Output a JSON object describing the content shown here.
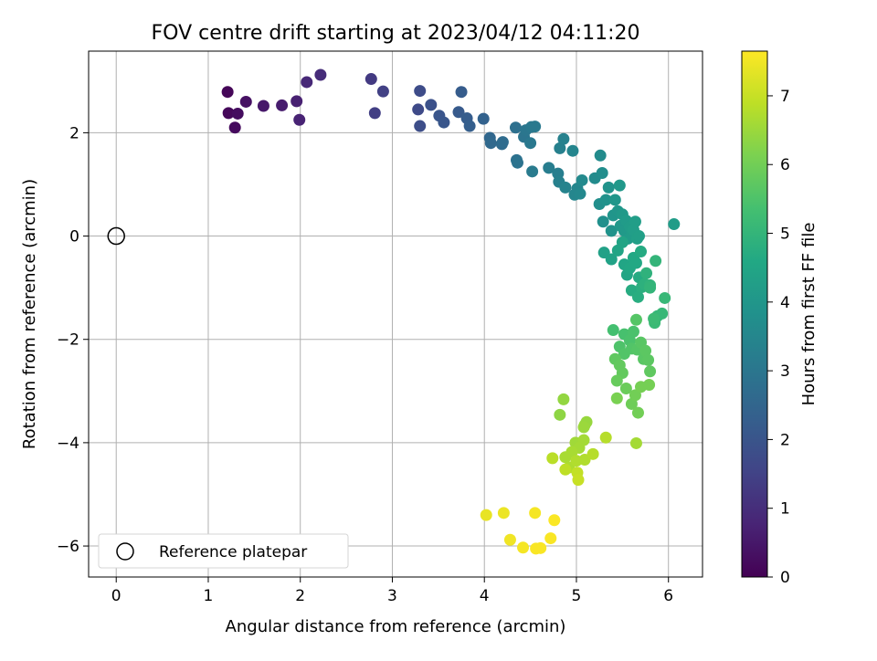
{
  "chart_data": {
    "type": "scatter",
    "title": "FOV centre drift starting at 2023/04/12 04:11:20",
    "xlabel": "Angular distance from reference (arcmin)",
    "ylabel": "Rotation from reference (arcmin)",
    "xlim": [
      -0.3,
      6.37
    ],
    "ylim": [
      -6.6,
      3.58
    ],
    "xticks": [
      0,
      1,
      2,
      3,
      4,
      5,
      6
    ],
    "yticks": [
      -6,
      -4,
      -2,
      0,
      2
    ],
    "grid": true,
    "legend": {
      "placement": "lower-left",
      "entries": [
        "Reference platepar"
      ]
    },
    "colorbar": {
      "label": "Hours from first FF file",
      "colormap": "viridis",
      "range": [
        0,
        7.65
      ],
      "ticks": [
        0,
        1,
        2,
        3,
        4,
        5,
        6,
        7
      ]
    },
    "reference_point": {
      "name": "Reference platepar",
      "x": 0,
      "y": 0
    },
    "points": [
      [
        1.21,
        2.79,
        0.1
      ],
      [
        1.22,
        2.38,
        0.15
      ],
      [
        1.29,
        2.1,
        0.2
      ],
      [
        1.32,
        2.37,
        0.25
      ],
      [
        1.41,
        2.6,
        0.35
      ],
      [
        1.6,
        2.52,
        0.5
      ],
      [
        1.8,
        2.53,
        0.6
      ],
      [
        1.96,
        2.61,
        0.7
      ],
      [
        1.99,
        2.25,
        0.75
      ],
      [
        2.07,
        2.98,
        0.85
      ],
      [
        2.22,
        3.12,
        0.95
      ],
      [
        2.77,
        3.04,
        1.3
      ],
      [
        2.81,
        2.38,
        1.4
      ],
      [
        2.9,
        2.8,
        1.45
      ],
      [
        3.28,
        2.45,
        1.7
      ],
      [
        3.3,
        2.81,
        1.75
      ],
      [
        3.3,
        2.13,
        1.8
      ],
      [
        3.42,
        2.54,
        1.9
      ],
      [
        3.51,
        2.33,
        2.0
      ],
      [
        3.56,
        2.2,
        2.05
      ],
      [
        3.72,
        2.4,
        2.15
      ],
      [
        3.75,
        2.79,
        2.2
      ],
      [
        3.81,
        2.28,
        2.25
      ],
      [
        3.84,
        2.13,
        2.3
      ],
      [
        3.99,
        2.27,
        2.4
      ],
      [
        4.06,
        1.9,
        2.55
      ],
      [
        4.07,
        1.8,
        2.6
      ],
      [
        4.19,
        1.78,
        2.65
      ],
      [
        4.2,
        1.82,
        2.7
      ],
      [
        4.34,
        2.1,
        2.8
      ],
      [
        4.35,
        1.47,
        2.85
      ],
      [
        4.36,
        1.42,
        2.9
      ],
      [
        4.43,
        1.92,
        2.95
      ],
      [
        4.45,
        2.05,
        3.0
      ],
      [
        4.5,
        1.8,
        3.05
      ],
      [
        4.51,
        2.11,
        3.05
      ],
      [
        4.55,
        2.12,
        3.1
      ],
      [
        4.52,
        1.25,
        3.15
      ],
      [
        4.7,
        1.32,
        3.2
      ],
      [
        4.8,
        1.21,
        3.25
      ],
      [
        4.81,
        1.05,
        3.3
      ],
      [
        4.82,
        1.7,
        3.3
      ],
      [
        4.86,
        1.88,
        3.35
      ],
      [
        4.88,
        0.94,
        3.4
      ],
      [
        4.96,
        1.65,
        3.45
      ],
      [
        4.98,
        0.8,
        3.5
      ],
      [
        5.01,
        0.92,
        3.5
      ],
      [
        5.04,
        0.82,
        3.55
      ],
      [
        5.06,
        1.08,
        3.6
      ],
      [
        5.2,
        1.12,
        3.65
      ],
      [
        5.26,
        1.56,
        3.65
      ],
      [
        5.28,
        1.22,
        3.7
      ],
      [
        5.25,
        0.62,
        3.75
      ],
      [
        5.29,
        0.28,
        3.8
      ],
      [
        5.32,
        0.7,
        3.85
      ],
      [
        5.35,
        0.94,
        3.9
      ],
      [
        5.38,
        0.1,
        3.9
      ],
      [
        5.4,
        0.4,
        3.95
      ],
      [
        5.42,
        0.7,
        4.0
      ],
      [
        5.45,
        0.48,
        4.0
      ],
      [
        5.47,
        0.98,
        4.05
      ],
      [
        5.48,
        0.2,
        4.05
      ],
      [
        5.5,
        0.42,
        4.1
      ],
      [
        5.52,
        0.1,
        4.1
      ],
      [
        5.54,
        0.3,
        4.15
      ],
      [
        5.56,
        -0.05,
        4.15
      ],
      [
        5.58,
        0.18,
        4.2
      ],
      [
        5.6,
        0.02,
        4.2
      ],
      [
        5.62,
        0.12,
        4.25
      ],
      [
        5.64,
        0.28,
        4.25
      ],
      [
        5.66,
        -0.05,
        4.3
      ],
      [
        5.68,
        0.0,
        4.3
      ],
      [
        5.3,
        -0.32,
        4.35
      ],
      [
        5.38,
        -0.45,
        4.4
      ],
      [
        5.45,
        -0.28,
        4.45
      ],
      [
        5.5,
        -0.12,
        4.45
      ],
      [
        5.52,
        -0.55,
        4.5
      ],
      [
        5.55,
        -0.75,
        4.5
      ],
      [
        5.58,
        -0.62,
        4.55
      ],
      [
        5.62,
        -0.42,
        4.6
      ],
      [
        5.65,
        -0.52,
        4.6
      ],
      [
        5.68,
        -0.8,
        4.65
      ],
      [
        5.7,
        -0.3,
        4.65
      ],
      [
        5.6,
        -1.05,
        4.7
      ],
      [
        5.67,
        -1.18,
        4.75
      ],
      [
        5.71,
        -0.99,
        4.8
      ],
      [
        5.74,
        -0.93,
        4.85
      ],
      [
        5.76,
        -0.72,
        4.9
      ],
      [
        5.8,
        -0.95,
        4.95
      ],
      [
        5.86,
        -0.48,
        5.0
      ],
      [
        5.8,
        -1.0,
        5.0
      ],
      [
        5.88,
        -1.55,
        5.05
      ],
      [
        5.93,
        -1.5,
        5.1
      ],
      [
        5.96,
        -1.2,
        5.1
      ],
      [
        5.85,
        -1.68,
        5.15
      ],
      [
        5.84,
        -1.6,
        5.2
      ],
      [
        5.4,
        -1.82,
        5.35
      ],
      [
        5.52,
        -1.9,
        5.4
      ],
      [
        5.58,
        -2.02,
        5.45
      ],
      [
        5.62,
        -1.85,
        5.45
      ],
      [
        5.47,
        -2.14,
        5.5
      ],
      [
        5.52,
        -2.28,
        5.55
      ],
      [
        5.6,
        -2.18,
        5.55
      ],
      [
        5.65,
        -1.62,
        5.6
      ],
      [
        5.66,
        -2.2,
        5.6
      ],
      [
        5.7,
        -2.06,
        5.65
      ],
      [
        5.73,
        -2.38,
        5.65
      ],
      [
        5.75,
        -2.22,
        5.7
      ],
      [
        5.78,
        -2.4,
        5.7
      ],
      [
        5.8,
        -2.62,
        5.75
      ],
      [
        5.42,
        -2.38,
        5.75
      ],
      [
        5.47,
        -2.5,
        5.8
      ],
      [
        5.5,
        -2.65,
        5.8
      ],
      [
        5.44,
        -2.8,
        5.85
      ],
      [
        5.54,
        -2.95,
        5.9
      ],
      [
        5.6,
        -3.25,
        5.95
      ],
      [
        5.64,
        -3.08,
        6.0
      ],
      [
        5.67,
        -3.42,
        6.0
      ],
      [
        5.7,
        -2.92,
        6.05
      ],
      [
        5.79,
        -2.88,
        6.05
      ],
      [
        5.44,
        -3.14,
        6.1
      ],
      [
        4.82,
        -3.46,
        6.35
      ],
      [
        4.86,
        -3.16,
        6.4
      ],
      [
        5.09,
        -3.66,
        6.45
      ],
      [
        5.11,
        -3.6,
        6.45
      ],
      [
        5.08,
        -3.7,
        6.5
      ],
      [
        4.99,
        -4.0,
        6.55
      ],
      [
        5.08,
        -3.95,
        6.6
      ],
      [
        5.03,
        -4.1,
        6.6
      ],
      [
        4.95,
        -4.18,
        6.65
      ],
      [
        4.88,
        -4.28,
        6.65
      ],
      [
        4.92,
        -4.48,
        6.7
      ],
      [
        5.0,
        -4.35,
        6.75
      ],
      [
        5.09,
        -4.33,
        6.75
      ],
      [
        5.18,
        -4.22,
        6.8
      ],
      [
        5.32,
        -3.9,
        6.8
      ],
      [
        4.74,
        -4.3,
        6.85
      ],
      [
        4.88,
        -4.52,
        6.9
      ],
      [
        5.01,
        -4.58,
        6.95
      ],
      [
        5.02,
        -4.72,
        7.0
      ],
      [
        5.65,
        -4.01,
        6.6
      ],
      [
        4.02,
        -5.4,
        7.4
      ],
      [
        4.21,
        -5.36,
        7.45
      ],
      [
        4.28,
        -5.88,
        7.5
      ],
      [
        4.42,
        -6.03,
        7.55
      ],
      [
        4.55,
        -5.36,
        7.55
      ],
      [
        4.56,
        -6.05,
        7.6
      ],
      [
        4.61,
        -6.04,
        7.6
      ],
      [
        4.72,
        -5.85,
        7.6
      ],
      [
        4.76,
        -5.5,
        7.62
      ],
      [
        6.06,
        0.23,
        4.2
      ]
    ]
  }
}
